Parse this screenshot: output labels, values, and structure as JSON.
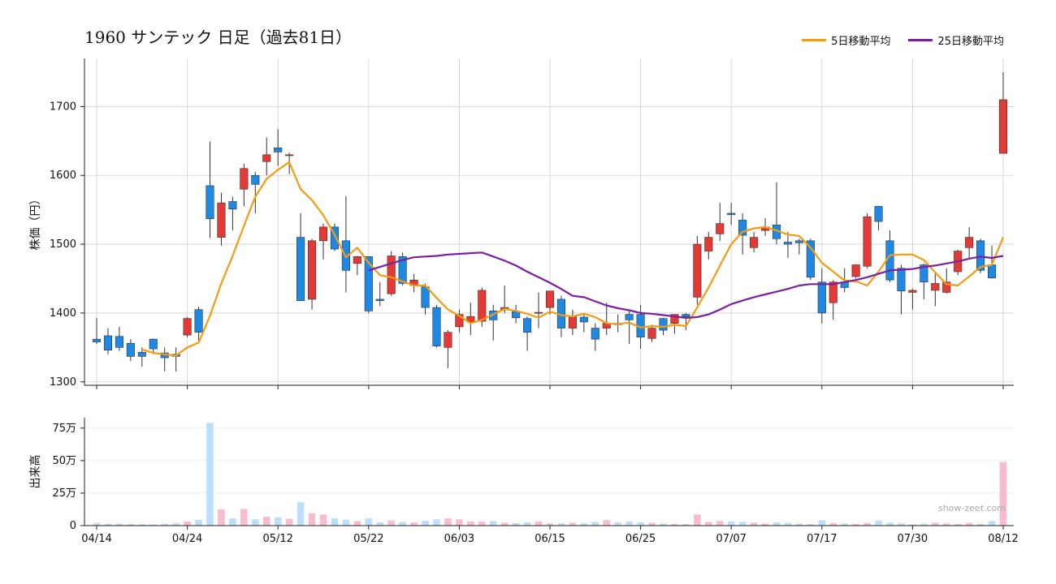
{
  "chart_data": {
    "type": "candlestick",
    "title": "1960 サンテック  日足（過去81日）",
    "price_ylabel": "株価（円）",
    "volume_ylabel": "出来高",
    "price_ylim": [
      1295,
      1770
    ],
    "price_yticks": [
      1300,
      1400,
      1500,
      1600,
      1700
    ],
    "volume_ylim": [
      0,
      830000
    ],
    "volume_yticks": [
      {
        "value": 0,
        "label": "0"
      },
      {
        "value": 250000,
        "label": "25万"
      },
      {
        "value": 500000,
        "label": "50万"
      },
      {
        "value": 750000,
        "label": "75万"
      }
    ],
    "xtick_labels": [
      {
        "index": 0,
        "label": "04/14"
      },
      {
        "index": 8,
        "label": "04/24"
      },
      {
        "index": 16,
        "label": "05/12"
      },
      {
        "index": 24,
        "label": "05/22"
      },
      {
        "index": 32,
        "label": "06/03"
      },
      {
        "index": 40,
        "label": "06/15"
      },
      {
        "index": 48,
        "label": "06/25"
      },
      {
        "index": 56,
        "label": "07/07"
      },
      {
        "index": 64,
        "label": "07/17"
      },
      {
        "index": 72,
        "label": "07/30"
      },
      {
        "index": 80,
        "label": "08/12"
      }
    ],
    "grid": true,
    "legend_position": "top-right",
    "watermark": "show-zeet.com",
    "colors": {
      "up": "#e53935",
      "down": "#1e88e5",
      "ma5": "#f39c12",
      "ma25": "#7b1fa2",
      "vol_up": "#f8bbd0",
      "vol_down": "#bbdefb",
      "grid": "#d0d0d0"
    },
    "series": [
      {
        "name": "5日移動平均",
        "key": "ma5"
      },
      {
        "name": "25日移動平均",
        "key": "ma25"
      }
    ],
    "ohlcv": [
      [
        1362,
        1393,
        1355,
        1358,
        20000
      ],
      [
        1367,
        1378,
        1340,
        1346,
        14000
      ],
      [
        1366,
        1380,
        1345,
        1350,
        15000
      ],
      [
        1356,
        1362,
        1330,
        1337,
        12000
      ],
      [
        1343,
        1350,
        1322,
        1337,
        11000
      ],
      [
        1362,
        1363,
        1340,
        1348,
        9000
      ],
      [
        1342,
        1350,
        1315,
        1335,
        15000
      ],
      [
        1340,
        1350,
        1315,
        1337,
        18000
      ],
      [
        1368,
        1394,
        1365,
        1392,
        32000
      ],
      [
        1405,
        1409,
        1360,
        1372,
        45000
      ],
      [
        1585,
        1649,
        1509,
        1537,
        790000
      ],
      [
        1510,
        1575,
        1498,
        1560,
        125000
      ],
      [
        1562,
        1569,
        1520,
        1551,
        55000
      ],
      [
        1580,
        1617,
        1555,
        1610,
        128000
      ],
      [
        1600,
        1605,
        1545,
        1587,
        48000
      ],
      [
        1620,
        1655,
        1600,
        1630,
        68000
      ],
      [
        1640,
        1667,
        1614,
        1634,
        64000
      ],
      [
        1630,
        1633,
        1602,
        1630,
        52000
      ],
      [
        1510,
        1545,
        1418,
        1418,
        180000
      ],
      [
        1420,
        1508,
        1405,
        1505,
        95000
      ],
      [
        1505,
        1530,
        1478,
        1525,
        85000
      ],
      [
        1525,
        1530,
        1490,
        1493,
        55000
      ],
      [
        1505,
        1570,
        1430,
        1462,
        45000
      ],
      [
        1472,
        1483,
        1455,
        1482,
        35000
      ],
      [
        1482,
        1482,
        1400,
        1403,
        55000
      ],
      [
        1420,
        1445,
        1410,
        1418,
        25000
      ],
      [
        1428,
        1490,
        1425,
        1483,
        40000
      ],
      [
        1482,
        1488,
        1440,
        1443,
        28000
      ],
      [
        1440,
        1457,
        1430,
        1448,
        25000
      ],
      [
        1438,
        1443,
        1398,
        1408,
        38000
      ],
      [
        1408,
        1412,
        1350,
        1352,
        48000
      ],
      [
        1350,
        1375,
        1320,
        1372,
        55000
      ],
      [
        1380,
        1405,
        1372,
        1398,
        48000
      ],
      [
        1387,
        1415,
        1368,
        1395,
        32000
      ],
      [
        1388,
        1437,
        1380,
        1433,
        30000
      ],
      [
        1403,
        1412,
        1360,
        1390,
        35000
      ],
      [
        1405,
        1440,
        1400,
        1408,
        22000
      ],
      [
        1402,
        1412,
        1385,
        1393,
        18000
      ],
      [
        1392,
        1395,
        1345,
        1372,
        25000
      ],
      [
        1400,
        1430,
        1378,
        1401,
        32000
      ],
      [
        1408,
        1432,
        1398,
        1432,
        16000
      ],
      [
        1420,
        1425,
        1365,
        1378,
        18000
      ],
      [
        1378,
        1405,
        1368,
        1395,
        22000
      ],
      [
        1394,
        1398,
        1372,
        1387,
        18000
      ],
      [
        1378,
        1385,
        1345,
        1362,
        28000
      ],
      [
        1378,
        1415,
        1368,
        1385,
        42000
      ],
      [
        1385,
        1398,
        1372,
        1383,
        25000
      ],
      [
        1398,
        1405,
        1355,
        1390,
        32000
      ],
      [
        1398,
        1412,
        1348,
        1365,
        25000
      ],
      [
        1363,
        1383,
        1358,
        1378,
        20000
      ],
      [
        1392,
        1393,
        1368,
        1375,
        16000
      ],
      [
        1385,
        1398,
        1370,
        1398,
        12000
      ],
      [
        1398,
        1400,
        1375,
        1395,
        12000
      ],
      [
        1423,
        1512,
        1412,
        1500,
        85000
      ],
      [
        1490,
        1518,
        1478,
        1510,
        28000
      ],
      [
        1515,
        1560,
        1505,
        1530,
        35000
      ],
      [
        1545,
        1560,
        1528,
        1543,
        32000
      ],
      [
        1535,
        1545,
        1485,
        1513,
        28000
      ],
      [
        1495,
        1518,
        1488,
        1510,
        22000
      ],
      [
        1520,
        1538,
        1512,
        1525,
        15000
      ],
      [
        1528,
        1590,
        1500,
        1508,
        25000
      ],
      [
        1503,
        1518,
        1480,
        1500,
        20000
      ],
      [
        1505,
        1508,
        1485,
        1502,
        15000
      ],
      [
        1505,
        1508,
        1448,
        1452,
        12000
      ],
      [
        1445,
        1465,
        1385,
        1400,
        42000
      ],
      [
        1415,
        1448,
        1390,
        1445,
        18000
      ],
      [
        1445,
        1465,
        1430,
        1437,
        15000
      ],
      [
        1453,
        1471,
        1450,
        1470,
        12000
      ],
      [
        1468,
        1545,
        1465,
        1540,
        20000
      ],
      [
        1555,
        1555,
        1520,
        1533,
        40000
      ],
      [
        1505,
        1520,
        1445,
        1448,
        22000
      ],
      [
        1465,
        1470,
        1398,
        1432,
        18000
      ],
      [
        1430,
        1435,
        1405,
        1433,
        10000
      ],
      [
        1470,
        1472,
        1420,
        1445,
        15000
      ],
      [
        1433,
        1458,
        1410,
        1443,
        22000
      ],
      [
        1430,
        1465,
        1428,
        1445,
        16000
      ],
      [
        1460,
        1492,
        1455,
        1490,
        12000
      ],
      [
        1495,
        1525,
        1480,
        1510,
        20000
      ],
      [
        1505,
        1508,
        1458,
        1462,
        14000
      ],
      [
        1470,
        1498,
        1450,
        1451,
        35000
      ],
      [
        1632,
        1750,
        1632,
        1710,
        490000
      ]
    ],
    "ma5": [
      null,
      null,
      null,
      null,
      1347,
      1342,
      1340,
      1338,
      1350,
      1357,
      1396,
      1443,
      1483,
      1527,
      1569,
      1595,
      1608,
      1619,
      1580,
      1564,
      1542,
      1514,
      1481,
      1495,
      1473,
      1455,
      1452,
      1446,
      1440,
      1440,
      1422,
      1405,
      1396,
      1385,
      1390,
      1398,
      1406,
      1403,
      1399,
      1393,
      1402,
      1397,
      1395,
      1399,
      1394,
      1385,
      1384,
      1386,
      1379,
      1381,
      1380,
      1383,
      1381,
      1408,
      1437,
      1469,
      1500,
      1518,
      1523,
      1525,
      1520,
      1514,
      1512,
      1495,
      1473,
      1460,
      1447,
      1446,
      1440,
      1460,
      1484,
      1485,
      1485,
      1477,
      1459,
      1442,
      1440,
      1453,
      1467,
      1470,
      1510
    ],
    "ma25": [
      null,
      null,
      null,
      null,
      null,
      null,
      null,
      null,
      null,
      null,
      null,
      null,
      null,
      null,
      null,
      null,
      null,
      null,
      null,
      null,
      null,
      null,
      null,
      null,
      1462,
      1467,
      1472,
      1477,
      1481,
      1482,
      1483,
      1485,
      1486,
      1487,
      1488,
      1482,
      1476,
      1469,
      1460,
      1452,
      1444,
      1435,
      1425,
      1423,
      1417,
      1411,
      1407,
      1404,
      1400,
      1399,
      1397,
      1395,
      1393,
      1394,
      1398,
      1405,
      1413,
      1418,
      1423,
      1427,
      1431,
      1435,
      1440,
      1442,
      1442,
      1442,
      1445,
      1448,
      1452,
      1457,
      1462,
      1463,
      1464,
      1467,
      1469,
      1472,
      1475,
      1479,
      1482,
      1480,
      1483
    ]
  }
}
